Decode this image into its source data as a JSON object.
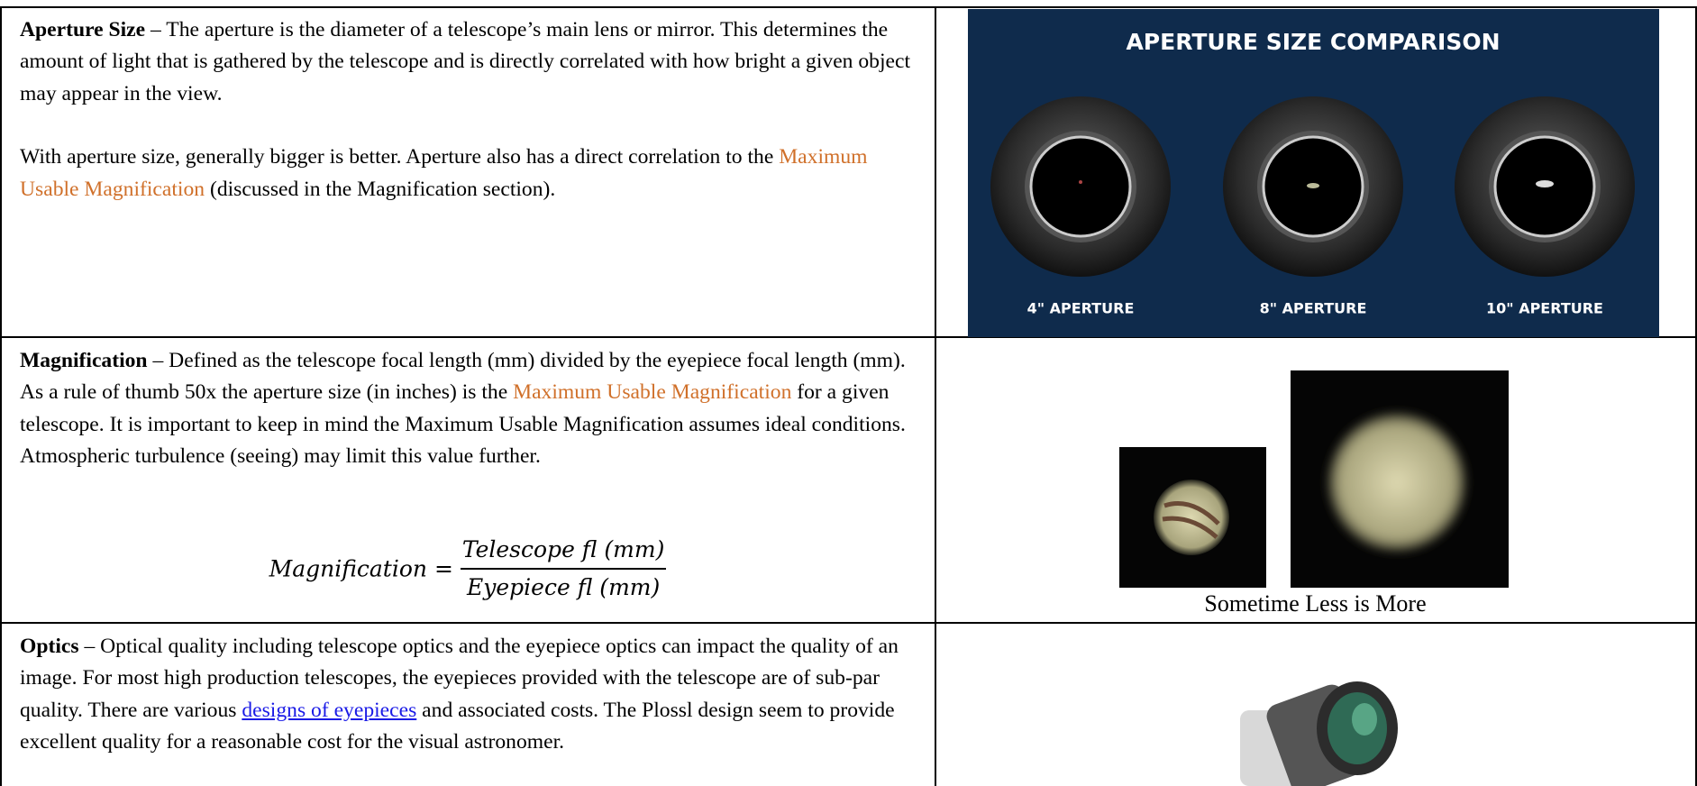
{
  "rows": [
    {
      "term": "Aperture Size",
      "intro": " – The aperture is the diameter of a telescope’s main lens or mirror.  This determines the amount of light that is gathered by the telescope and is directly correlated with how bright a given object may appear in the view.",
      "p2_before": "With aperture size, generally bigger is better.  Aperture also has a direct correlation to the ",
      "p2_link": "Maximum Usable Magnification",
      "p2_after": " (discussed in the Magnification section).",
      "image": {
        "title": "APERTURE SIZE COMPARISON",
        "labels": [
          "4\" APERTURE",
          "8\" APERTURE",
          "10\" APERTURE"
        ]
      }
    },
    {
      "term": "Magnification",
      "intro": " – Defined as the telescope focal length (mm) divided by the eyepiece focal length (mm).  As a rule of thumb 50x the aperture size (in inches) is the ",
      "link": "Maximum Usable Magnification",
      "after": " for a given telescope.  It is important to keep in mind the Maximum Usable Magnification assumes ideal conditions.  Atmospheric turbulence (seeing) may limit this value further.",
      "formula": {
        "lhs": "Magnification =",
        "numerator": "Telescope fl (mm)",
        "denominator": "Eyepiece fl (mm)"
      },
      "caption": "Sometime Less is More"
    },
    {
      "term": "Optics",
      "intro": " – Optical quality including telescope optics and the eyepiece optics can impact the quality of an image.  For most high production telescopes, the eyepieces provided with the telescope are of sub-par quality.  There are various ",
      "link": "designs of eyepieces",
      "after": " and associated costs.  The Plossl design seem to provide excellent quality for a reasonable cost for the visual astronomer."
    }
  ]
}
